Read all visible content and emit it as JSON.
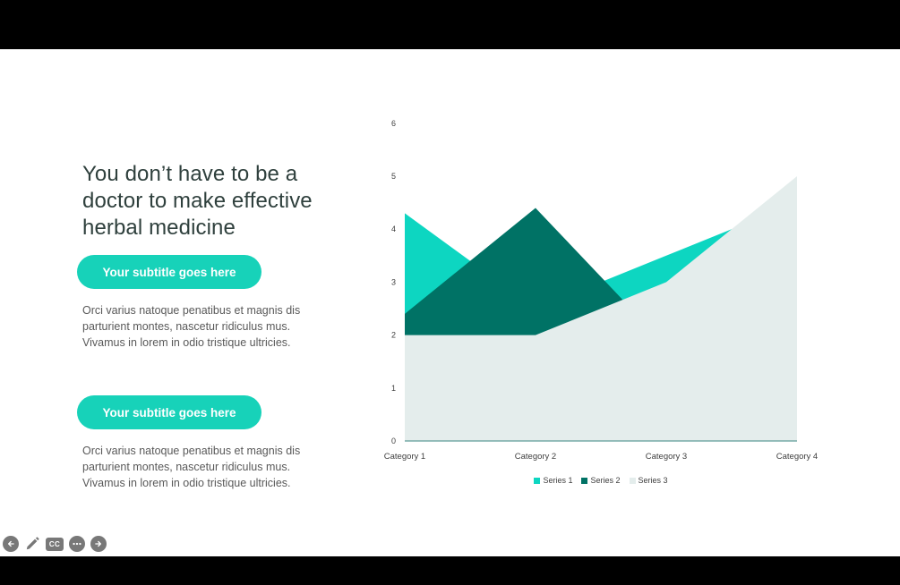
{
  "slide": {
    "title_lines": [
      "You don’t have to be a",
      "doctor to make effective",
      "herbal medicine"
    ],
    "sections": [
      {
        "pill_label": "Your subtitle goes here",
        "body_lines": [
          "Orci varius natoque penatibus et magnis dis",
          "parturient montes, nascetur ridiculus mus.",
          "Vivamus in lorem in odio tristique ultricies."
        ]
      },
      {
        "pill_label": "Your subtitle goes here",
        "body_lines": [
          "Orci varius natoque penatibus et magnis dis",
          "parturient montes, nascetur ridiculus mus.",
          "Vivamus in lorem in odio tristique ultricies."
        ]
      }
    ]
  },
  "chart_data": {
    "type": "area",
    "stacked": false,
    "categories": [
      "Category 1",
      "Category 2",
      "Category 3",
      "Category 4"
    ],
    "series": [
      {
        "name": "Series 1",
        "values": [
          4.3,
          2.5,
          3.5,
          4.5
        ],
        "color": "#0dd6c1"
      },
      {
        "name": "Series 2",
        "values": [
          2.4,
          4.4,
          1.8,
          2.8
        ],
        "color": "#007265"
      },
      {
        "name": "Series 3",
        "values": [
          2,
          2,
          3,
          5
        ],
        "color": "#e4edec"
      }
    ],
    "title": "",
    "xlabel": "",
    "ylabel": "",
    "ylim": [
      0,
      6
    ],
    "yticks": [
      0,
      1,
      2,
      3,
      4,
      5,
      6
    ],
    "grid": false,
    "legend_position": "bottom",
    "axis_color": "#3a8580",
    "tick_color": "#404040"
  },
  "colors": {
    "accent": "#17d2b9",
    "title_text": "#2f403d",
    "body_text": "#595959",
    "control_gray": "#787878"
  },
  "controls": {
    "previous": "previous slide",
    "pen": "pen tool",
    "cc_label": "CC",
    "more": "more options",
    "next": "next slide"
  }
}
